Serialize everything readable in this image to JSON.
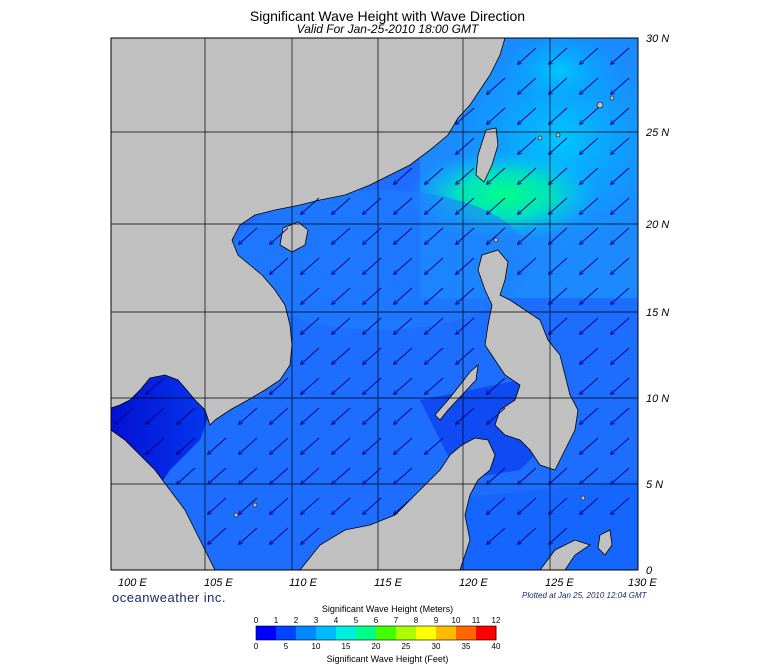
{
  "title": "Significant Wave Height with Wave Direction",
  "subtitle": "Valid For Jan-25-2010 18:00 GMT",
  "lat_labels": [
    "30 N",
    "25 N",
    "20 N",
    "15 N",
    "10 N",
    "5 N",
    "0"
  ],
  "lon_labels": [
    "100 E",
    "105 E",
    "110 E",
    "115 E",
    "120 E",
    "125 E",
    "130 E"
  ],
  "branding": "oceanweather inc.",
  "plotted_note": "Plotted at Jan 25, 2010 12:04 GMT",
  "colorbar": {
    "title_meters": "Significant Wave Height (Meters)",
    "title_feet": "Significant Wave Height (Feet)",
    "meter_ticks": [
      "0",
      "1",
      "2",
      "3",
      "4",
      "5",
      "6",
      "7",
      "8",
      "9",
      "10",
      "11",
      "12"
    ],
    "feet_ticks": [
      "0",
      "5",
      "10",
      "15",
      "20",
      "25",
      "30",
      "35",
      "40"
    ],
    "colors": [
      "#0000ff",
      "#0044ff",
      "#0088ff",
      "#00bbff",
      "#00eedd",
      "#00ff88",
      "#44ff00",
      "#aaff00",
      "#ffff00",
      "#ffbb00",
      "#ff6600",
      "#ff0000"
    ]
  },
  "map": {
    "land_color": "#c0c0c0",
    "sea_color": "#1a73ff",
    "arrow_color": "#000080",
    "wave_direction": "northeast, arrows pointing to southwest"
  }
}
